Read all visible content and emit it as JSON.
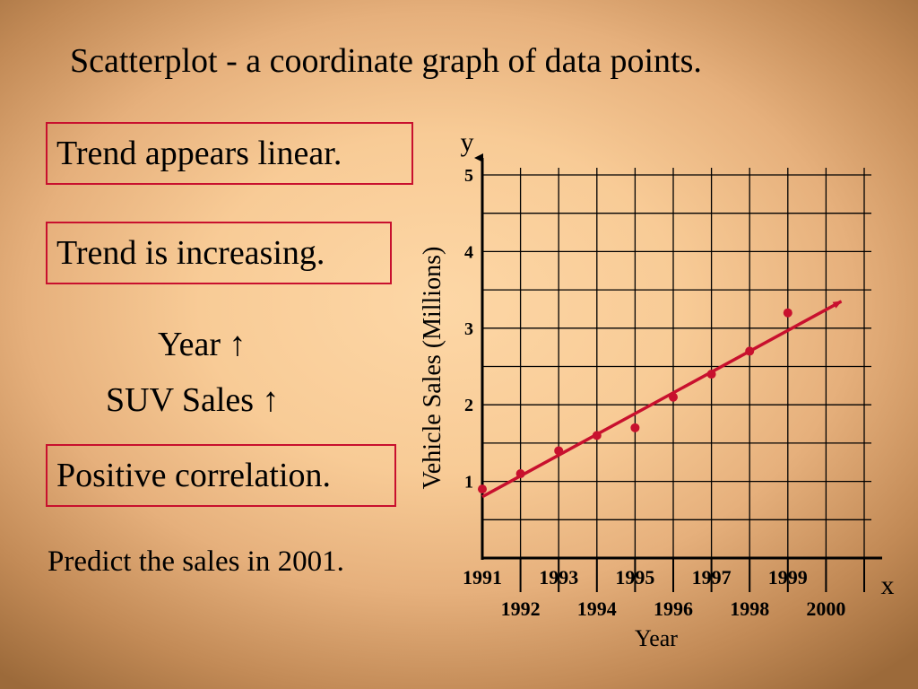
{
  "slide": {
    "title": "Scatterplot - a coordinate graph of data points.",
    "box1": "Trend appears linear.",
    "box2": "Trend is increasing.",
    "line_year": "Year ↑",
    "line_suv": "SUV Sales ↑",
    "box3": "Positive correlation.",
    "predict": "Predict the sales in 2001."
  },
  "colors": {
    "box_border": "#c8102e",
    "point": "#c8102e",
    "trend_line": "#c8102e",
    "grid": "#000000"
  },
  "chart_data": {
    "type": "scatter",
    "title": "",
    "xlabel": "Year",
    "ylabel": "Vehicle Sales (Millions)",
    "x_axis_symbol": "x",
    "y_axis_symbol": "y",
    "xlim": [
      1991,
      2001
    ],
    "ylim": [
      0,
      5
    ],
    "x_ticks": [
      1991,
      1992,
      1993,
      1994,
      1995,
      1996,
      1997,
      1998,
      1999,
      2000
    ],
    "y_ticks": [
      1,
      2,
      3,
      4,
      5
    ],
    "grid": true,
    "series": [
      {
        "x": [
          1991,
          1992,
          1993,
          1994,
          1995,
          1996,
          1997,
          1998,
          1999
        ],
        "y": [
          0.9,
          1.1,
          1.4,
          1.6,
          1.7,
          2.1,
          2.4,
          2.7,
          3.2
        ]
      }
    ],
    "trend_line": {
      "x": [
        1991,
        2000.4
      ],
      "y": [
        0.8,
        3.35
      ],
      "arrow": true
    }
  }
}
